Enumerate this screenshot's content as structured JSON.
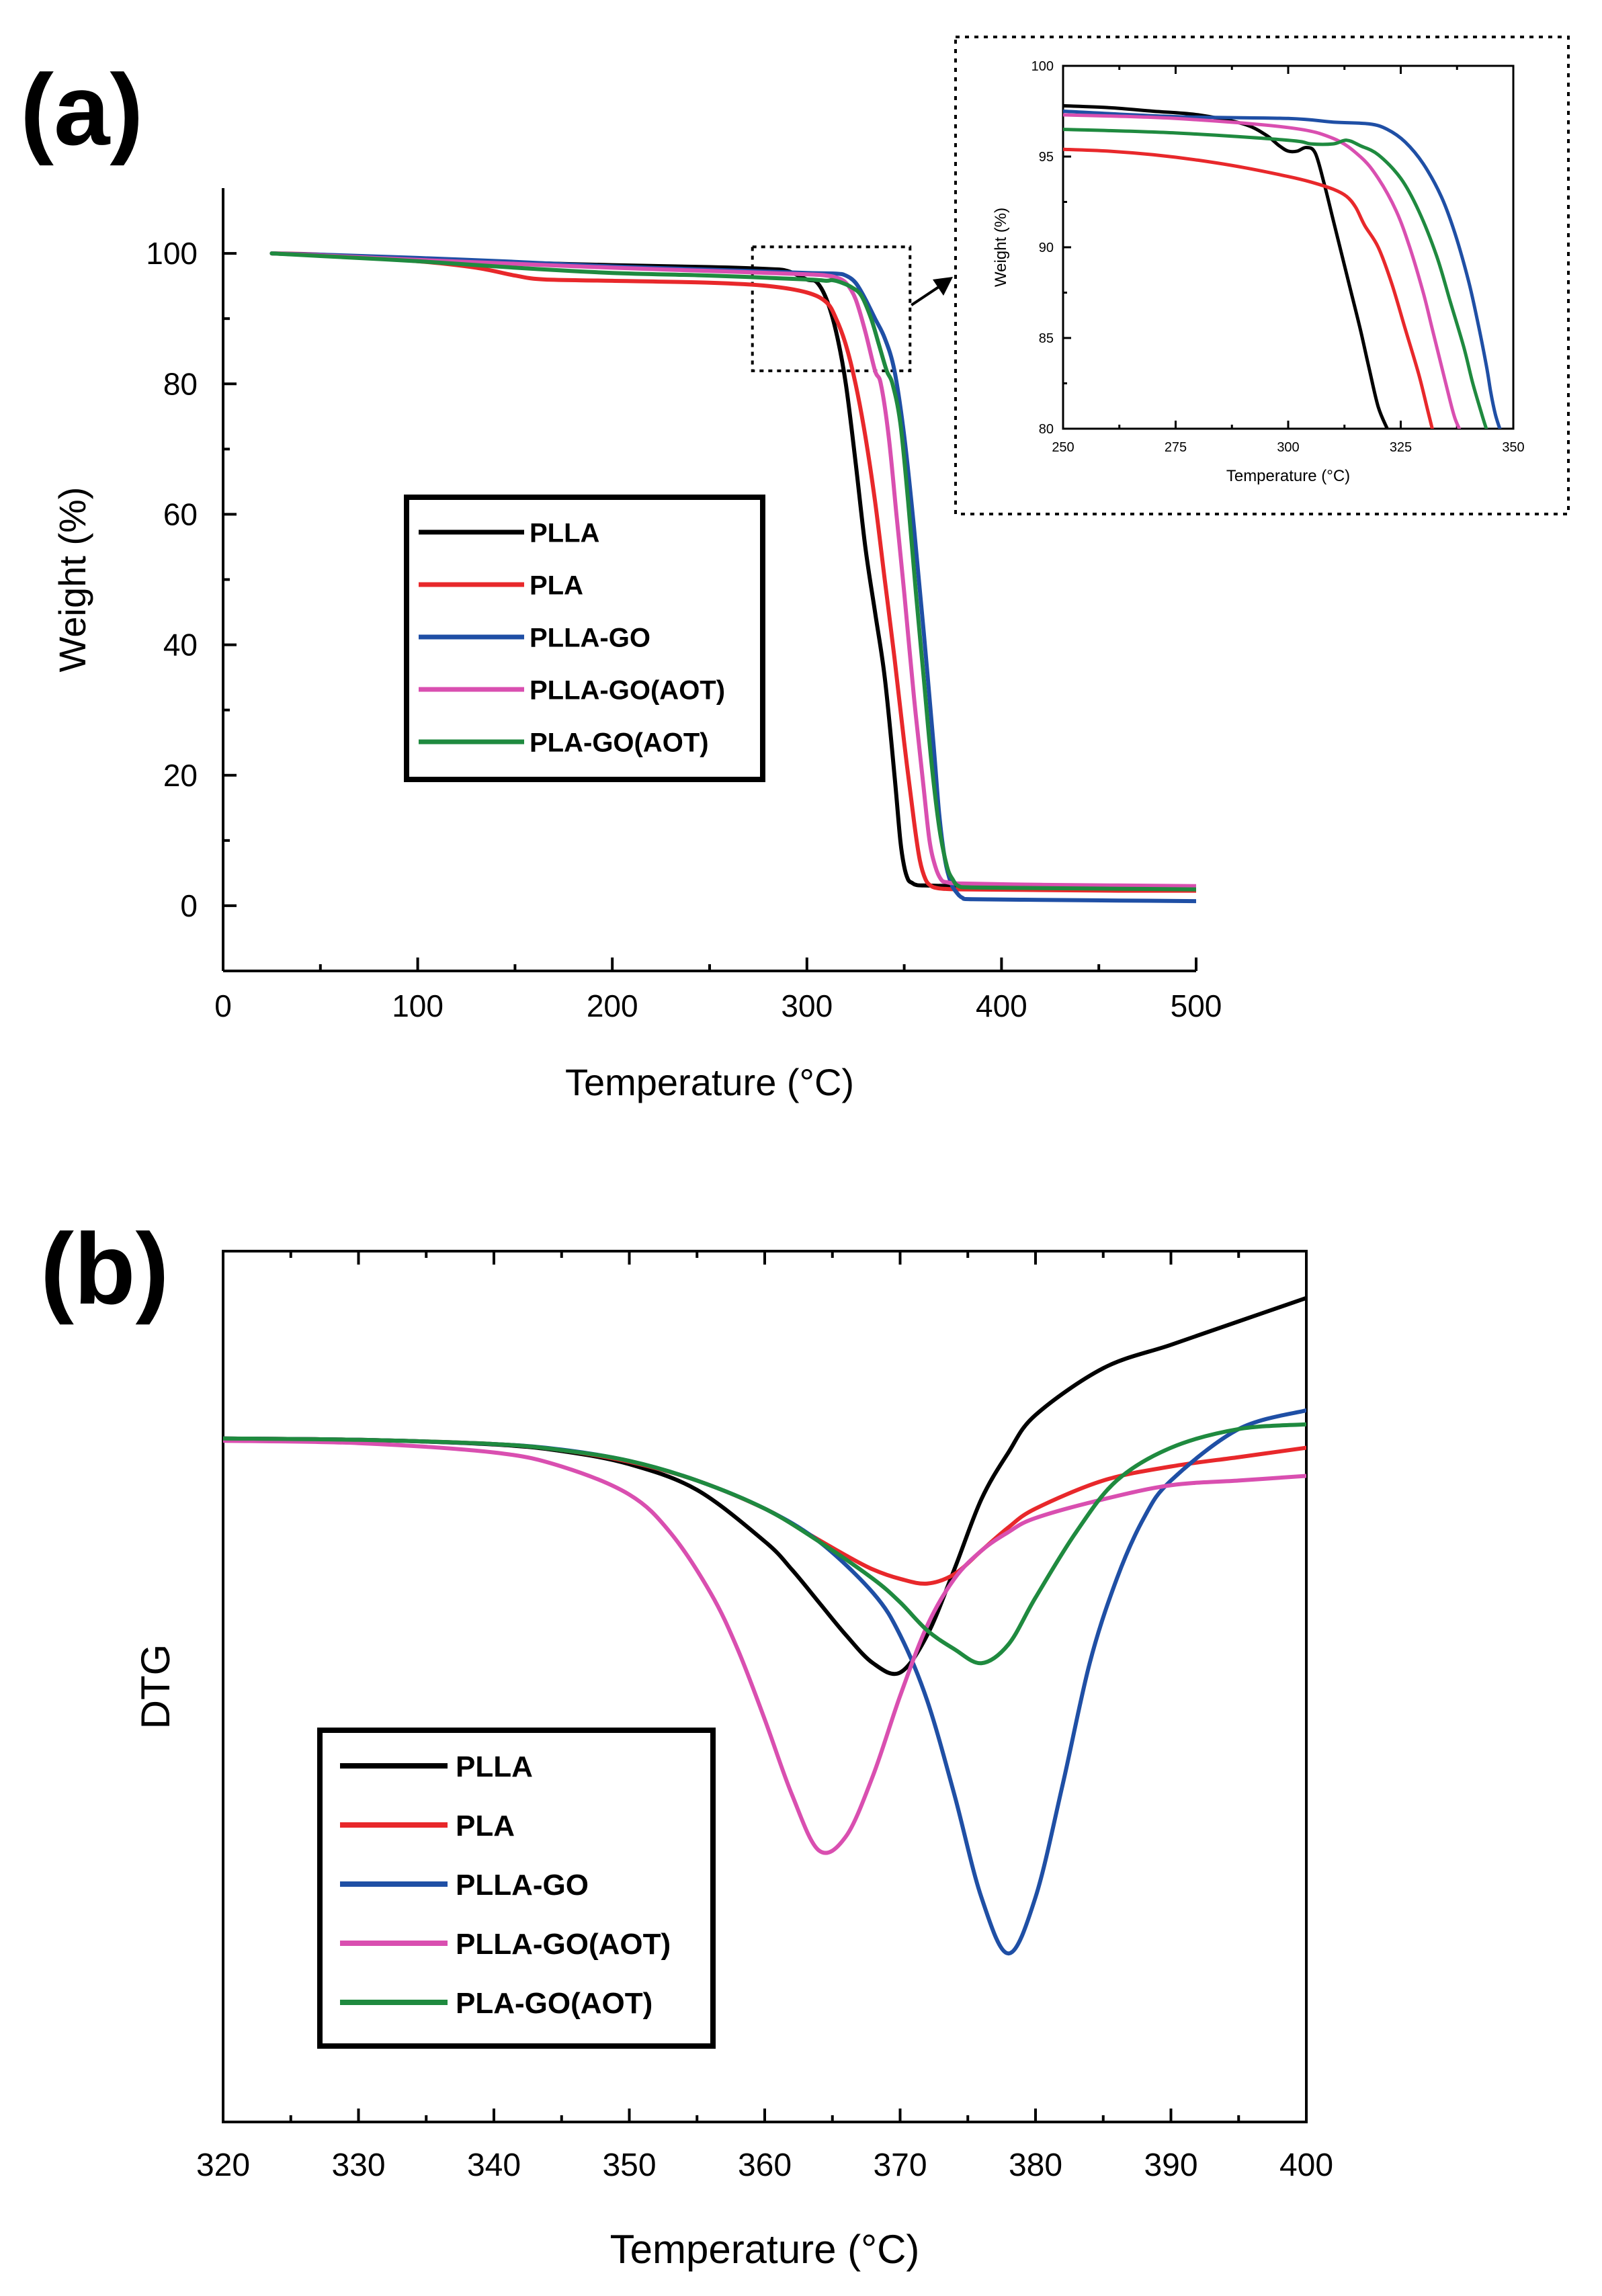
{
  "figure": {
    "panel_a_label": "(a)",
    "panel_b_label": "(b)"
  },
  "chart_data": [
    {
      "id": "a",
      "type": "line",
      "title": "",
      "xlabel": "Temperature (°C)",
      "ylabel": "Weight (%)",
      "xlim": [
        0,
        500
      ],
      "ylim": [
        -10,
        110
      ],
      "xticks": [
        0,
        100,
        200,
        300,
        400,
        500
      ],
      "xtick_labels": [
        "0",
        "100",
        "200",
        "300",
        "400",
        "500"
      ],
      "yticks": [
        0,
        20,
        40,
        60,
        80,
        100
      ],
      "ytick_labels": [
        "0",
        "20",
        "40",
        "60",
        "80",
        "100"
      ],
      "grid": false,
      "legend_position": "center-left",
      "zoom_box": {
        "x": [
          272,
          353
        ],
        "y": [
          82,
          101
        ]
      },
      "series": [
        {
          "name": "PLLA",
          "color": "#000000",
          "x": [
            25,
            50,
            100,
            150,
            200,
            250,
            280,
            290,
            300,
            305,
            310,
            315,
            320,
            325,
            330,
            335,
            340,
            345,
            348,
            350,
            352,
            354,
            356,
            360,
            380,
            420,
            460,
            500
          ],
          "y": [
            100,
            99.7,
            99.2,
            98.6,
            98.2,
            97.9,
            97.6,
            97.3,
            96.0,
            95.6,
            93.0,
            88.0,
            80.0,
            68.0,
            55.0,
            45.0,
            35.0,
            20.0,
            10.0,
            6.0,
            4.0,
            3.5,
            3.2,
            3.1,
            3.0,
            2.9,
            2.8,
            2.7
          ]
        },
        {
          "name": "PLA",
          "color": "#e8282b",
          "x": [
            25,
            50,
            100,
            130,
            150,
            165,
            200,
            250,
            280,
            300,
            310,
            315,
            320,
            325,
            330,
            335,
            340,
            345,
            350,
            355,
            358,
            361,
            364,
            367,
            370,
            380,
            420,
            460,
            500
          ],
          "y": [
            100,
            99.8,
            98.8,
            97.8,
            96.6,
            96.0,
            95.8,
            95.5,
            95.0,
            94.0,
            92.5,
            90.0,
            86.0,
            80.0,
            72.0,
            62.0,
            50.0,
            38.0,
            25.0,
            13.0,
            7.0,
            4.0,
            3.0,
            2.7,
            2.6,
            2.5,
            2.4,
            2.3,
            2.3
          ]
        },
        {
          "name": "PLLA-GO",
          "color": "#1f4fa5",
          "x": [
            25,
            50,
            100,
            150,
            200,
            250,
            300,
            315,
            320,
            325,
            330,
            335,
            340,
            345,
            350,
            355,
            360,
            365,
            368,
            371,
            374,
            377,
            380,
            385,
            420,
            460,
            500
          ],
          "y": [
            100,
            99.8,
            99.3,
            98.7,
            98.0,
            97.5,
            97.0,
            96.9,
            96.6,
            95.5,
            93.0,
            90.0,
            87.0,
            82.0,
            72.0,
            58.0,
            42.0,
            25.0,
            14.0,
            7.0,
            3.5,
            2.0,
            1.2,
            1.0,
            0.9,
            0.8,
            0.7
          ]
        },
        {
          "name": "PLLA-GO(AOT)",
          "color": "#d94fb0",
          "x": [
            25,
            50,
            100,
            150,
            200,
            250,
            300,
            310,
            315,
            320,
            325,
            330,
            335,
            338,
            342,
            346,
            350,
            355,
            360,
            363,
            366,
            369,
            372,
            380,
            420,
            460,
            500
          ],
          "y": [
            100,
            99.7,
            99.0,
            98.4,
            97.8,
            97.3,
            96.8,
            96.6,
            96.3,
            95.5,
            93.0,
            88.0,
            82.0,
            80.0,
            72.0,
            60.0,
            48.0,
            32.0,
            18.0,
            10.0,
            6.0,
            4.0,
            3.6,
            3.4,
            3.2,
            3.1,
            3.0
          ]
        },
        {
          "name": "PLA-GO(AOT)",
          "color": "#1f8a3f",
          "x": [
            25,
            50,
            100,
            150,
            200,
            250,
            300,
            310,
            313,
            318,
            323,
            328,
            333,
            337,
            341,
            344,
            348,
            352,
            356,
            360,
            364,
            368,
            372,
            375,
            378,
            385,
            420,
            460,
            500
          ],
          "y": [
            100,
            99.6,
            98.8,
            97.8,
            97.0,
            96.6,
            96.0,
            95.8,
            95.9,
            95.5,
            94.8,
            93.5,
            90.0,
            86.0,
            82.0,
            80.0,
            74.0,
            62.0,
            48.0,
            35.0,
            22.0,
            12.0,
            6.0,
            4.0,
            3.0,
            2.8,
            2.7,
            2.6,
            2.5
          ]
        }
      ]
    },
    {
      "id": "a-inset",
      "type": "line",
      "title": "",
      "xlabel": "Temperature (°C)",
      "ylabel": "Weight (%)",
      "xlim": [
        250,
        350
      ],
      "ylim": [
        80,
        100
      ],
      "xticks": [
        250,
        275,
        300,
        325,
        350
      ],
      "xtick_labels": [
        "250",
        "275",
        "300",
        "325",
        "350"
      ],
      "yticks": [
        80,
        85,
        90,
        95,
        100
      ],
      "ytick_labels": [
        "80",
        "85",
        "90",
        "95",
        "100"
      ],
      "grid": false,
      "legend_position": "none",
      "series": [
        {
          "name": "PLLA",
          "color": "#000000",
          "x": [
            250,
            260,
            270,
            280,
            290,
            295,
            298,
            300,
            302,
            304,
            306,
            308,
            310,
            312,
            314,
            316,
            318,
            320,
            322
          ],
          "y": [
            97.8,
            97.7,
            97.5,
            97.3,
            96.8,
            96.2,
            95.6,
            95.3,
            95.3,
            95.5,
            95.2,
            93.5,
            91.5,
            89.5,
            87.5,
            85.5,
            83.3,
            81.2,
            80.0
          ]
        },
        {
          "name": "PLA",
          "color": "#e8282b",
          "x": [
            250,
            260,
            270,
            280,
            290,
            300,
            305,
            310,
            313,
            315,
            317,
            320,
            323,
            326,
            329,
            331,
            332
          ],
          "y": [
            95.4,
            95.3,
            95.1,
            94.8,
            94.4,
            93.9,
            93.6,
            93.2,
            92.8,
            92.2,
            91.2,
            90.0,
            88.0,
            85.5,
            83.0,
            81.0,
            80.0
          ]
        },
        {
          "name": "PLLA-GO",
          "color": "#1f4fa5",
          "x": [
            250,
            275,
            300,
            310,
            318,
            322,
            326,
            330,
            334,
            337,
            340,
            342,
            344,
            345,
            346,
            347
          ],
          "y": [
            97.5,
            97.2,
            97.1,
            96.9,
            96.8,
            96.5,
            95.8,
            94.6,
            92.8,
            90.8,
            88.2,
            86.0,
            83.5,
            82.0,
            80.8,
            80.0
          ]
        },
        {
          "name": "PLLA-GO(AOT)",
          "color": "#d94fb0",
          "x": [
            250,
            275,
            300,
            310,
            316,
            320,
            324,
            327,
            330,
            332,
            334,
            336,
            337,
            338
          ],
          "y": [
            97.3,
            97.1,
            96.6,
            96.0,
            95.0,
            93.8,
            92.0,
            90.0,
            87.5,
            85.5,
            83.5,
            81.5,
            80.6,
            80.0
          ]
        },
        {
          "name": "PLA-GO(AOT)",
          "color": "#1f8a3f",
          "x": [
            250,
            275,
            300,
            305,
            310,
            313,
            316,
            320,
            325,
            329,
            333,
            336,
            339,
            341,
            343,
            344
          ],
          "y": [
            96.5,
            96.3,
            95.9,
            95.7,
            95.7,
            95.9,
            95.6,
            95.1,
            93.8,
            92.0,
            89.5,
            87.0,
            84.5,
            82.5,
            80.8,
            80.0
          ]
        }
      ]
    },
    {
      "id": "b",
      "type": "line",
      "title": "",
      "xlabel": "Temperature (°C)",
      "ylabel": "DTG",
      "xlim": [
        320,
        400
      ],
      "ylim": [
        -1.46,
        0.4
      ],
      "xticks": [
        320,
        330,
        340,
        350,
        360,
        370,
        380,
        390,
        400
      ],
      "xtick_labels": [
        "320",
        "330",
        "340",
        "350",
        "360",
        "370",
        "380",
        "390",
        "400"
      ],
      "yticks": [],
      "ytick_labels": [],
      "grid": false,
      "legend_position": "bottom-left",
      "series": [
        {
          "name": "PLLA",
          "color": "#000000",
          "x": [
            320,
            330,
            340,
            345,
            350,
            355,
            360,
            362,
            364,
            366,
            368,
            370,
            372,
            374,
            376,
            378,
            380,
            385,
            390,
            395,
            400
          ],
          "y": [
            0,
            -0.003,
            -0.013,
            -0.027,
            -0.055,
            -0.11,
            -0.22,
            -0.28,
            -0.35,
            -0.42,
            -0.48,
            -0.5,
            -0.42,
            -0.28,
            -0.13,
            -0.03,
            0.05,
            0.15,
            0.2,
            0.25,
            0.3
          ]
        },
        {
          "name": "PLA",
          "color": "#e8282b",
          "x": [
            320,
            330,
            340,
            345,
            350,
            355,
            360,
            363,
            366,
            368,
            370,
            372,
            374,
            376,
            378,
            380,
            385,
            390,
            395,
            400
          ],
          "y": [
            0,
            -0.003,
            -0.012,
            -0.025,
            -0.05,
            -0.09,
            -0.15,
            -0.2,
            -0.25,
            -0.28,
            -0.3,
            -0.31,
            -0.29,
            -0.24,
            -0.19,
            -0.15,
            -0.09,
            -0.06,
            -0.04,
            -0.02
          ]
        },
        {
          "name": "PLLA-GO",
          "color": "#1f4fa5",
          "x": [
            320,
            330,
            340,
            345,
            350,
            355,
            360,
            364,
            368,
            370,
            372,
            374,
            376,
            378,
            380,
            382,
            384,
            386,
            388,
            390,
            395,
            400
          ],
          "y": [
            0,
            -0.003,
            -0.012,
            -0.024,
            -0.048,
            -0.09,
            -0.15,
            -0.22,
            -0.33,
            -0.42,
            -0.56,
            -0.76,
            -0.98,
            -1.1,
            -0.98,
            -0.74,
            -0.48,
            -0.3,
            -0.17,
            -0.09,
            0.02,
            0.06
          ]
        },
        {
          "name": "PLLA-GO(AOT)",
          "color": "#d94fb0",
          "x": [
            320,
            330,
            340,
            345,
            350,
            353,
            356,
            358,
            360,
            362,
            364,
            366,
            368,
            370,
            372,
            374,
            376,
            378,
            380,
            385,
            390,
            395,
            400
          ],
          "y": [
            -0.005,
            -0.01,
            -0.03,
            -0.06,
            -0.12,
            -0.2,
            -0.33,
            -0.45,
            -0.6,
            -0.76,
            -0.88,
            -0.85,
            -0.72,
            -0.55,
            -0.4,
            -0.3,
            -0.24,
            -0.2,
            -0.17,
            -0.13,
            -0.1,
            -0.09,
            -0.08
          ]
        },
        {
          "name": "PLA-GO(AOT)",
          "color": "#1f8a3f",
          "x": [
            320,
            330,
            340,
            345,
            350,
            355,
            360,
            364,
            368,
            370,
            372,
            374,
            376,
            378,
            380,
            383,
            386,
            390,
            395,
            400
          ],
          "y": [
            0,
            -0.003,
            -0.012,
            -0.025,
            -0.048,
            -0.09,
            -0.15,
            -0.22,
            -0.3,
            -0.35,
            -0.41,
            -0.45,
            -0.48,
            -0.44,
            -0.34,
            -0.2,
            -0.09,
            -0.02,
            0.02,
            0.03
          ]
        }
      ]
    }
  ]
}
